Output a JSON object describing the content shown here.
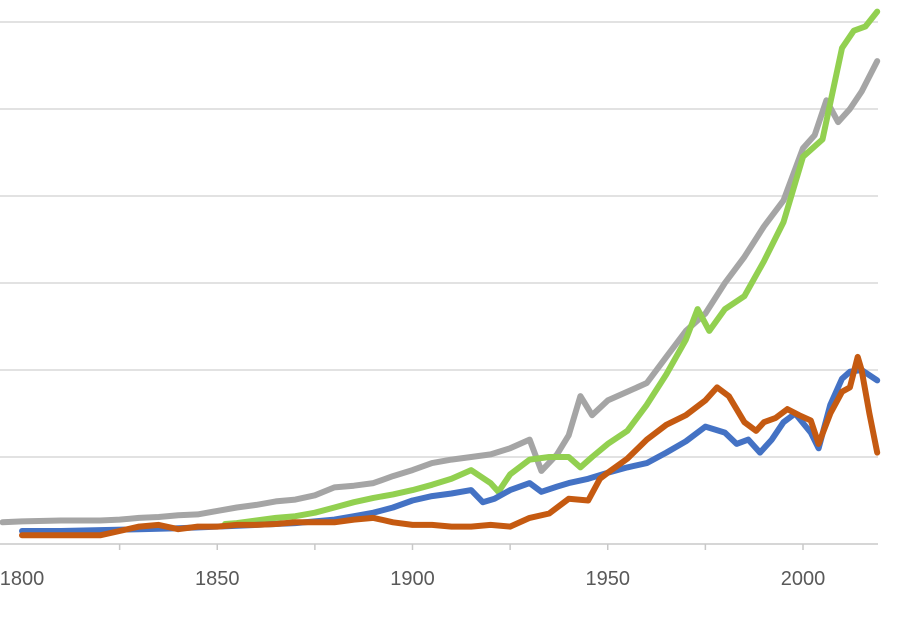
{
  "chart_data": {
    "type": "line",
    "title": "",
    "xlabel": "",
    "ylabel": "",
    "xlim": [
      1799,
      2019
    ],
    "ylim": [
      0,
      600
    ],
    "grid": true,
    "legend": "none",
    "x_ticks": [
      1800,
      1850,
      1900,
      1950,
      2000
    ],
    "x_tick_labels": [
      "1800",
      "1850",
      "1900",
      "1950",
      "2000"
    ],
    "y_gridlines": [
      100,
      200,
      300,
      400,
      500,
      600
    ],
    "series": [
      {
        "color": "#a5a5a5",
        "points": [
          [
            1795,
            25
          ],
          [
            1800,
            26
          ],
          [
            1810,
            27
          ],
          [
            1820,
            27
          ],
          [
            1825,
            28
          ],
          [
            1830,
            30
          ],
          [
            1835,
            31
          ],
          [
            1840,
            33
          ],
          [
            1845,
            34
          ],
          [
            1850,
            38
          ],
          [
            1855,
            42
          ],
          [
            1860,
            45
          ],
          [
            1865,
            49
          ],
          [
            1870,
            51
          ],
          [
            1875,
            56
          ],
          [
            1880,
            65
          ],
          [
            1885,
            67
          ],
          [
            1890,
            70
          ],
          [
            1895,
            78
          ],
          [
            1900,
            85
          ],
          [
            1905,
            93
          ],
          [
            1910,
            97
          ],
          [
            1915,
            100
          ],
          [
            1920,
            103
          ],
          [
            1925,
            110
          ],
          [
            1930,
            120
          ],
          [
            1933,
            84
          ],
          [
            1937,
            103
          ],
          [
            1940,
            125
          ],
          [
            1943,
            170
          ],
          [
            1946,
            148
          ],
          [
            1950,
            165
          ],
          [
            1955,
            175
          ],
          [
            1960,
            185
          ],
          [
            1965,
            215
          ],
          [
            1970,
            245
          ],
          [
            1975,
            265
          ],
          [
            1980,
            300
          ],
          [
            1985,
            330
          ],
          [
            1990,
            365
          ],
          [
            1995,
            395
          ],
          [
            2000,
            455
          ],
          [
            2003,
            470
          ],
          [
            2006,
            510
          ],
          [
            2009,
            485
          ],
          [
            2012,
            500
          ],
          [
            2015,
            520
          ],
          [
            2019,
            555
          ]
        ]
      },
      {
        "color": "#92d050",
        "points": [
          [
            1852,
            23
          ],
          [
            1855,
            24
          ],
          [
            1860,
            27
          ],
          [
            1865,
            30
          ],
          [
            1870,
            32
          ],
          [
            1875,
            36
          ],
          [
            1880,
            42
          ],
          [
            1885,
            48
          ],
          [
            1890,
            53
          ],
          [
            1895,
            57
          ],
          [
            1900,
            62
          ],
          [
            1905,
            68
          ],
          [
            1910,
            75
          ],
          [
            1915,
            85
          ],
          [
            1920,
            70
          ],
          [
            1922,
            60
          ],
          [
            1925,
            80
          ],
          [
            1930,
            97
          ],
          [
            1935,
            100
          ],
          [
            1940,
            100
          ],
          [
            1943,
            88
          ],
          [
            1946,
            100
          ],
          [
            1950,
            115
          ],
          [
            1955,
            130
          ],
          [
            1960,
            160
          ],
          [
            1965,
            195
          ],
          [
            1970,
            235
          ],
          [
            1973,
            270
          ],
          [
            1976,
            245
          ],
          [
            1980,
            270
          ],
          [
            1985,
            285
          ],
          [
            1990,
            325
          ],
          [
            1995,
            370
          ],
          [
            2000,
            445
          ],
          [
            2005,
            465
          ],
          [
            2010,
            570
          ],
          [
            2013,
            590
          ],
          [
            2016,
            595
          ],
          [
            2019,
            612
          ]
        ]
      },
      {
        "color": "#4472c4",
        "points": [
          [
            1800,
            15
          ],
          [
            1810,
            15
          ],
          [
            1820,
            16
          ],
          [
            1830,
            17
          ],
          [
            1840,
            18
          ],
          [
            1850,
            20
          ],
          [
            1860,
            22
          ],
          [
            1870,
            24
          ],
          [
            1880,
            28
          ],
          [
            1885,
            32
          ],
          [
            1890,
            36
          ],
          [
            1895,
            42
          ],
          [
            1900,
            50
          ],
          [
            1905,
            55
          ],
          [
            1910,
            58
          ],
          [
            1915,
            62
          ],
          [
            1918,
            48
          ],
          [
            1921,
            52
          ],
          [
            1925,
            62
          ],
          [
            1930,
            70
          ],
          [
            1933,
            60
          ],
          [
            1937,
            66
          ],
          [
            1940,
            70
          ],
          [
            1945,
            75
          ],
          [
            1950,
            82
          ],
          [
            1955,
            88
          ],
          [
            1960,
            93
          ],
          [
            1965,
            105
          ],
          [
            1970,
            118
          ],
          [
            1975,
            135
          ],
          [
            1980,
            128
          ],
          [
            1983,
            115
          ],
          [
            1986,
            120
          ],
          [
            1989,
            105
          ],
          [
            1992,
            120
          ],
          [
            1995,
            140
          ],
          [
            1998,
            150
          ],
          [
            2002,
            128
          ],
          [
            2004,
            110
          ],
          [
            2007,
            160
          ],
          [
            2010,
            190
          ],
          [
            2012,
            198
          ],
          [
            2015,
            200
          ],
          [
            2019,
            188
          ]
        ]
      },
      {
        "color": "#c55a11",
        "points": [
          [
            1800,
            10
          ],
          [
            1810,
            10
          ],
          [
            1820,
            10
          ],
          [
            1825,
            15
          ],
          [
            1830,
            20
          ],
          [
            1835,
            22
          ],
          [
            1840,
            17
          ],
          [
            1845,
            20
          ],
          [
            1850,
            20
          ],
          [
            1855,
            22
          ],
          [
            1860,
            22
          ],
          [
            1865,
            23
          ],
          [
            1870,
            25
          ],
          [
            1875,
            25
          ],
          [
            1880,
            25
          ],
          [
            1885,
            28
          ],
          [
            1890,
            30
          ],
          [
            1895,
            25
          ],
          [
            1900,
            22
          ],
          [
            1905,
            22
          ],
          [
            1910,
            20
          ],
          [
            1915,
            20
          ],
          [
            1920,
            22
          ],
          [
            1925,
            20
          ],
          [
            1930,
            30
          ],
          [
            1935,
            35
          ],
          [
            1940,
            52
          ],
          [
            1945,
            50
          ],
          [
            1948,
            75
          ],
          [
            1950,
            82
          ],
          [
            1955,
            98
          ],
          [
            1960,
            120
          ],
          [
            1965,
            137
          ],
          [
            1970,
            148
          ],
          [
            1975,
            165
          ],
          [
            1978,
            180
          ],
          [
            1981,
            170
          ],
          [
            1985,
            140
          ],
          [
            1988,
            130
          ],
          [
            1990,
            140
          ],
          [
            1993,
            145
          ],
          [
            1996,
            155
          ],
          [
            1999,
            148
          ],
          [
            2002,
            142
          ],
          [
            2004,
            115
          ],
          [
            2007,
            150
          ],
          [
            2010,
            175
          ],
          [
            2012,
            180
          ],
          [
            2014,
            215
          ],
          [
            2015,
            200
          ],
          [
            2017,
            150
          ],
          [
            2019,
            105
          ]
        ]
      }
    ]
  }
}
